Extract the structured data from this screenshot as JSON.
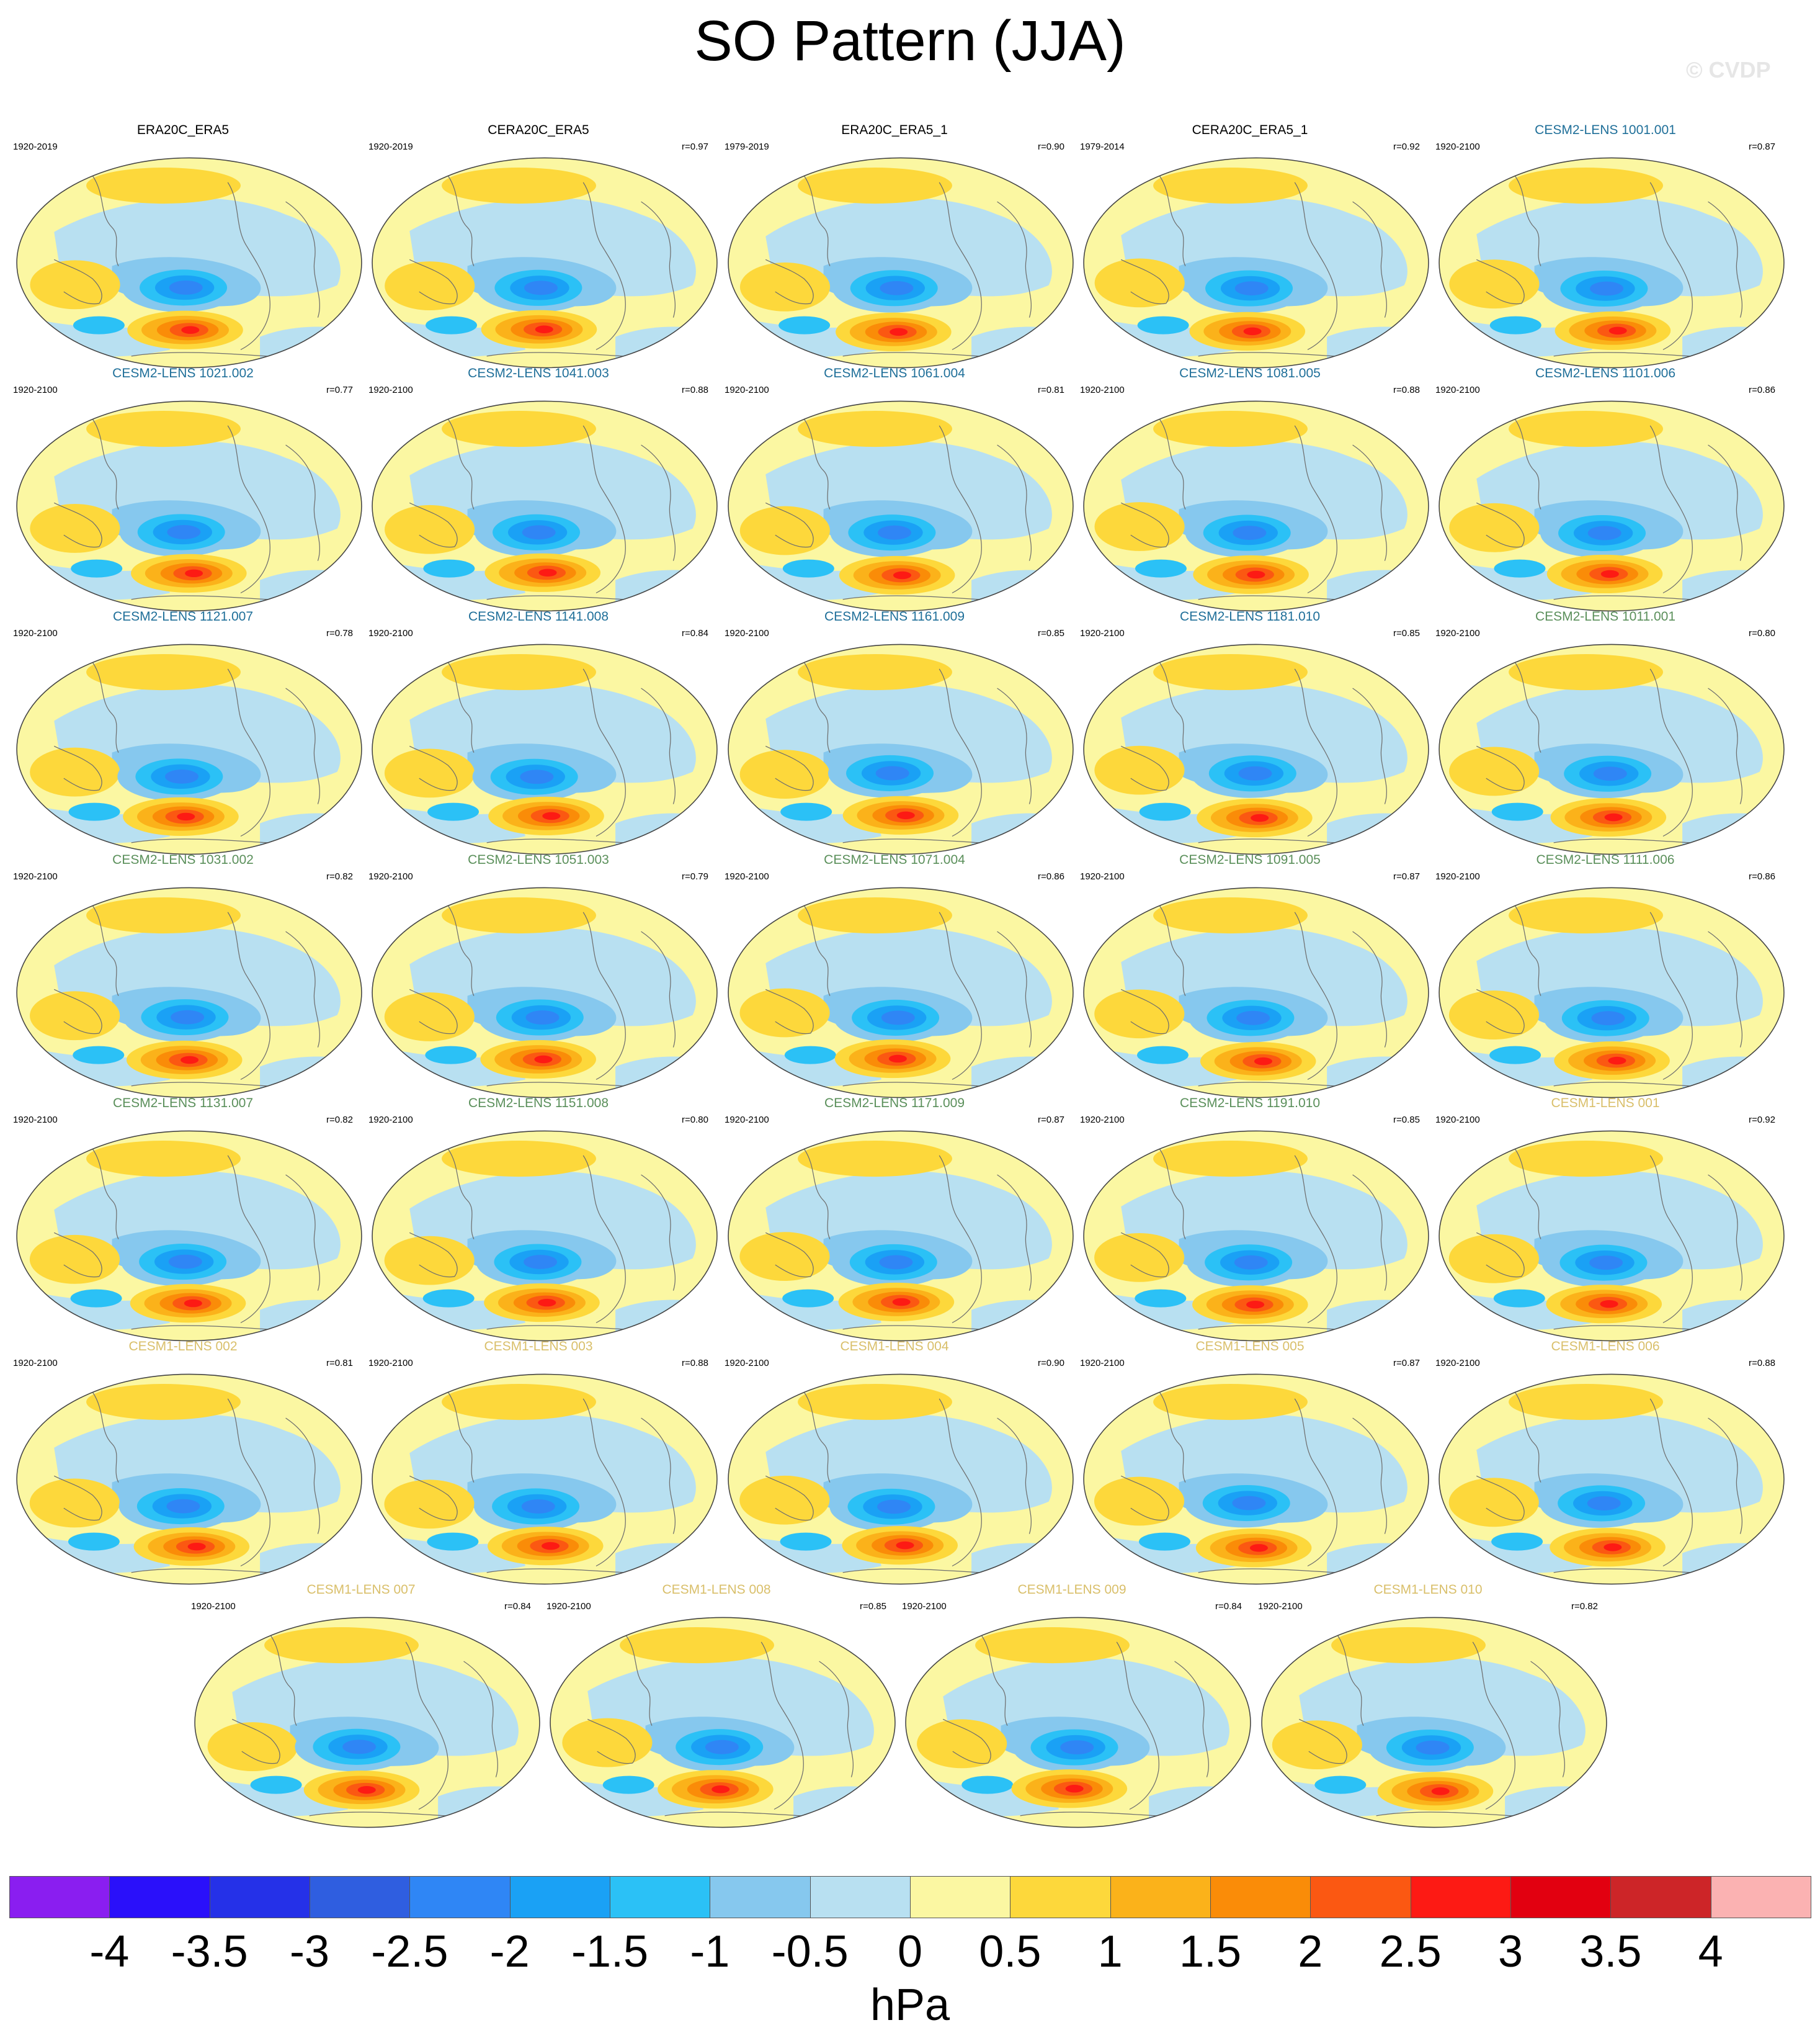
{
  "figure": {
    "title": "SO Pattern (JJA)",
    "watermark": "© CVDP",
    "colorbar_unit": "hPa"
  },
  "colors": {
    "title_obs": "#000000",
    "title_cesm2_a": "#1f6f99",
    "title_cesm2_b": "#5a8f5a",
    "title_cesm1": "#d9bf6a",
    "land_outline": "#6e6e6e"
  },
  "colorbar": {
    "tick_labels": [
      "-4",
      "-3.5",
      "-3",
      "-2.5",
      "-2",
      "-1.5",
      "-1",
      "-0.5",
      "0",
      "0.5",
      "1",
      "1.5",
      "2",
      "2.5",
      "3",
      "3.5",
      "4"
    ],
    "colors": [
      "#8a1ef0",
      "#2a10fa",
      "#2531e8",
      "#2f5ee0",
      "#2f86f5",
      "#1aa1f5",
      "#2bc1f6",
      "#86c8ee",
      "#b8e0f1",
      "#fbf7a2",
      "#fdd83b",
      "#fbb21a",
      "#fa8c08",
      "#fb5812",
      "#fd1a14",
      "#e20010",
      "#cd2528",
      "#fbb2b2"
    ]
  },
  "chart_data": {
    "type": "heatmap",
    "variable": "SO pattern, JJA",
    "unit": "hPa",
    "clim": [
      -4,
      4
    ],
    "panels": [
      {
        "name": "ERA20C_ERA5",
        "period": "1920-2019",
        "r": "",
        "group": "obs"
      },
      {
        "name": "CERA20C_ERA5",
        "period": "1920-2019",
        "r": "r=0.97",
        "group": "obs"
      },
      {
        "name": "ERA20C_ERA5_1",
        "period": "1979-2019",
        "r": "r=0.90",
        "group": "obs"
      },
      {
        "name": "CERA20C_ERA5_1",
        "period": "1979-2014",
        "r": "r=0.92",
        "group": "obs"
      },
      {
        "name": "CESM2-LENS 1001.001",
        "period": "1920-2100",
        "r": "r=0.87",
        "group": "cesm2a"
      },
      {
        "name": "CESM2-LENS 1021.002",
        "period": "1920-2100",
        "r": "r=0.77",
        "group": "cesm2a"
      },
      {
        "name": "CESM2-LENS 1041.003",
        "period": "1920-2100",
        "r": "r=0.88",
        "group": "cesm2a"
      },
      {
        "name": "CESM2-LENS 1061.004",
        "period": "1920-2100",
        "r": "r=0.81",
        "group": "cesm2a"
      },
      {
        "name": "CESM2-LENS 1081.005",
        "period": "1920-2100",
        "r": "r=0.88",
        "group": "cesm2a"
      },
      {
        "name": "CESM2-LENS 1101.006",
        "period": "1920-2100",
        "r": "r=0.86",
        "group": "cesm2a"
      },
      {
        "name": "CESM2-LENS 1121.007",
        "period": "1920-2100",
        "r": "r=0.78",
        "group": "cesm2a"
      },
      {
        "name": "CESM2-LENS 1141.008",
        "period": "1920-2100",
        "r": "r=0.84",
        "group": "cesm2a"
      },
      {
        "name": "CESM2-LENS 1161.009",
        "period": "1920-2100",
        "r": "r=0.85",
        "group": "cesm2a"
      },
      {
        "name": "CESM2-LENS 1181.010",
        "period": "1920-2100",
        "r": "r=0.85",
        "group": "cesm2a"
      },
      {
        "name": "CESM2-LENS 1011.001",
        "period": "1920-2100",
        "r": "r=0.80",
        "group": "cesm2b"
      },
      {
        "name": "CESM2-LENS 1031.002",
        "period": "1920-2100",
        "r": "r=0.82",
        "group": "cesm2b"
      },
      {
        "name": "CESM2-LENS 1051.003",
        "period": "1920-2100",
        "r": "r=0.79",
        "group": "cesm2b"
      },
      {
        "name": "CESM2-LENS 1071.004",
        "period": "1920-2100",
        "r": "r=0.86",
        "group": "cesm2b"
      },
      {
        "name": "CESM2-LENS 1091.005",
        "period": "1920-2100",
        "r": "r=0.87",
        "group": "cesm2b"
      },
      {
        "name": "CESM2-LENS 1111.006",
        "period": "1920-2100",
        "r": "r=0.86",
        "group": "cesm2b"
      },
      {
        "name": "CESM2-LENS 1131.007",
        "period": "1920-2100",
        "r": "r=0.82",
        "group": "cesm2b"
      },
      {
        "name": "CESM2-LENS 1151.008",
        "period": "1920-2100",
        "r": "r=0.80",
        "group": "cesm2b"
      },
      {
        "name": "CESM2-LENS 1171.009",
        "period": "1920-2100",
        "r": "r=0.87",
        "group": "cesm2b"
      },
      {
        "name": "CESM2-LENS 1191.010",
        "period": "1920-2100",
        "r": "r=0.85",
        "group": "cesm2b"
      },
      {
        "name": "CESM1-LENS 001",
        "period": "1920-2100",
        "r": "r=0.92",
        "group": "cesm1"
      },
      {
        "name": "CESM1-LENS 002",
        "period": "1920-2100",
        "r": "r=0.81",
        "group": "cesm1"
      },
      {
        "name": "CESM1-LENS 003",
        "period": "1920-2100",
        "r": "r=0.88",
        "group": "cesm1"
      },
      {
        "name": "CESM1-LENS 004",
        "period": "1920-2100",
        "r": "r=0.90",
        "group": "cesm1"
      },
      {
        "name": "CESM1-LENS 005",
        "period": "1920-2100",
        "r": "r=0.87",
        "group": "cesm1"
      },
      {
        "name": "CESM1-LENS 006",
        "period": "1920-2100",
        "r": "r=0.88",
        "group": "cesm1"
      },
      {
        "name": "CESM1-LENS 007",
        "period": "1920-2100",
        "r": "r=0.84",
        "group": "cesm1"
      },
      {
        "name": "CESM1-LENS 008",
        "period": "1920-2100",
        "r": "r=0.85",
        "group": "cesm1"
      },
      {
        "name": "CESM1-LENS 009",
        "period": "1920-2100",
        "r": "r=0.84",
        "group": "cesm1"
      },
      {
        "name": "CESM1-LENS 010",
        "period": "1920-2100",
        "r": "r=0.82",
        "group": "cesm1"
      }
    ]
  }
}
